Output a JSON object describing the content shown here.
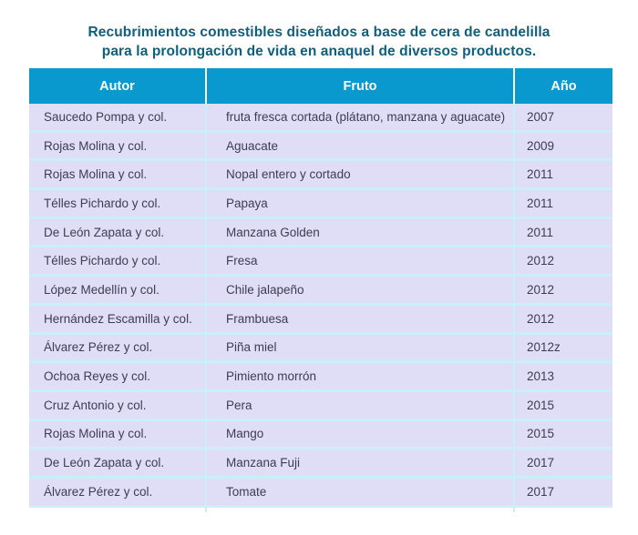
{
  "title": {
    "line1": "Recubrimientos comestibles diseñados a base de cera de candelilla",
    "line2": "para la prolongación de vida en anaquel de diversos productos."
  },
  "table": {
    "columns": [
      "Autor",
      "Fruto",
      "Año"
    ],
    "rows": [
      {
        "autor": "Saucedo Pompa y col.",
        "fruto": "fruta fresca cortada (plátano, manzana y aguacate)",
        "ano": "2007"
      },
      {
        "autor": "Rojas Molina y col.",
        "fruto": "Aguacate",
        "ano": "2009"
      },
      {
        "autor": "Rojas Molina y col.",
        "fruto": "Nopal entero y cortado",
        "ano": "2011"
      },
      {
        "autor": "Télles Pichardo y col.",
        "fruto": "Papaya",
        "ano": "2011"
      },
      {
        "autor": "De León Zapata y col.",
        "fruto": "Manzana Golden",
        "ano": "2011"
      },
      {
        "autor": "Télles Pichardo y col.",
        "fruto": "Fresa",
        "ano": "2012"
      },
      {
        "autor": "López Medellín y col.",
        "fruto": "Chile jalapeño",
        "ano": "2012"
      },
      {
        "autor": "Hernández Escamilla y col.",
        "fruto": "Frambuesa",
        "ano": "2012"
      },
      {
        "autor": "Álvarez Pérez y col.",
        "fruto": "Piña miel",
        "ano": "2012z"
      },
      {
        "autor": "Ochoa Reyes y col.",
        "fruto": "Pimiento morrón",
        "ano": "2013"
      },
      {
        "autor": "Cruz Antonio y col.",
        "fruto": "Pera",
        "ano": "2015"
      },
      {
        "autor": "Rojas Molina y col.",
        "fruto": "Mango",
        "ano": "2015"
      },
      {
        "autor": "De León Zapata y col.",
        "fruto": "Manzana Fuji",
        "ano": "2017"
      },
      {
        "autor": "Álvarez Pérez y col.",
        "fruto": "Tomate",
        "ano": "2017"
      }
    ]
  },
  "colors": {
    "header_bg": "#0999CE",
    "header_text": "#FFFFFF",
    "row_bg": "#E0DEF7",
    "separator": "#C9EFFA",
    "title_text": "#0E5F7E",
    "body_text": "#3C3C55",
    "page_bg": "#FFFFFF"
  }
}
